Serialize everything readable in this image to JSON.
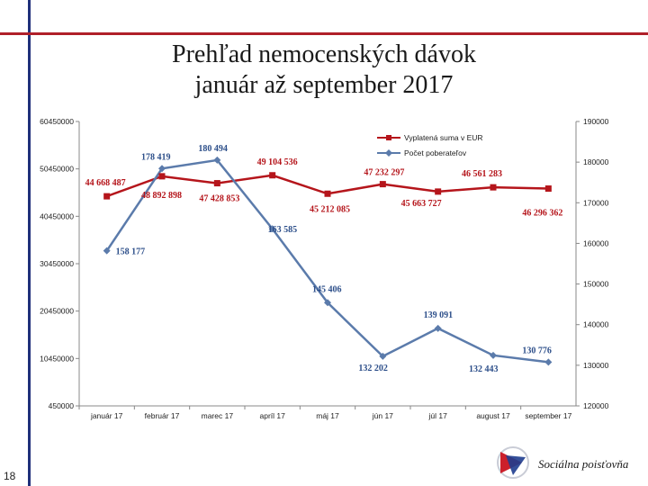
{
  "page": {
    "title_line1": "Prehľad nemocenských dávok",
    "title_line2": "január až september 2017",
    "page_number": "18",
    "logo_text": "Sociálna poisťovňa"
  },
  "colors": {
    "sum_series": "#b5151b",
    "count_series": "#5b7bab",
    "sum_labels": "#b5151b",
    "count_labels": "#2d4f8a",
    "frame_blue": "#1f2f7a",
    "frame_red": "#b0202a"
  },
  "chart_data": {
    "type": "line",
    "title": "",
    "categories": [
      "január 17",
      "február 17",
      "marec 17",
      "apríl 17",
      "máj 17",
      "jún 17",
      "júl 17",
      "august 17",
      "september 17"
    ],
    "left_axis": {
      "ylim": [
        450000,
        60450000
      ],
      "ticks": [
        "450000",
        "10450000",
        "20450000",
        "30450000",
        "40450000",
        "50450000",
        "60450000"
      ]
    },
    "right_axis": {
      "ylim": [
        120000,
        190000
      ],
      "ticks": [
        "120000",
        "130000",
        "140000",
        "150000",
        "160000",
        "170000",
        "180000",
        "190000"
      ]
    },
    "legend_position": "top-right",
    "series": [
      {
        "name": "Vyplatená suma v EUR",
        "axis": "left",
        "values": [
          44668487,
          48892898,
          47428853,
          49104536,
          45212085,
          47232297,
          45663727,
          46561283,
          46296362
        ],
        "labels": [
          "44 668 487",
          "48 892 898",
          "47 428 853",
          "49 104 536",
          "45 212 085",
          "47 232 297",
          "45 663 727",
          "46 561 283",
          "46 296 362"
        ]
      },
      {
        "name": "Počet poberateľov",
        "axis": "right",
        "values": [
          158177,
          178419,
          180494,
          163585,
          145406,
          132202,
          139091,
          132443,
          130776
        ],
        "labels": [
          "158 177",
          "178 419",
          "180 494",
          "163 585",
          "145 406",
          "132 202",
          "139 091",
          "132 443",
          "130 776"
        ]
      }
    ]
  }
}
